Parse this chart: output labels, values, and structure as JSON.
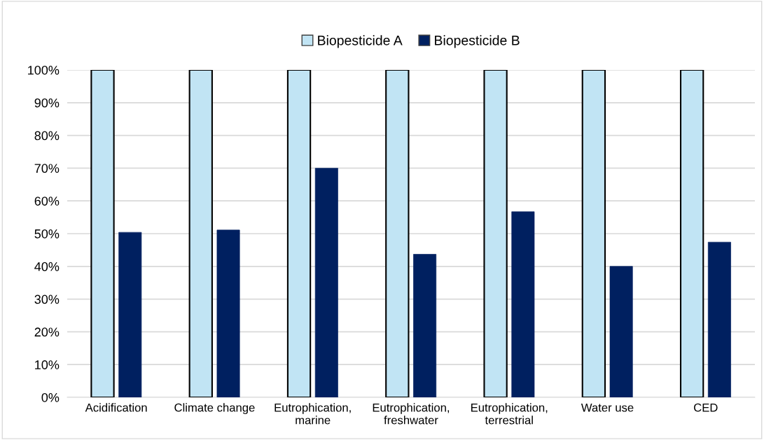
{
  "chart_data": {
    "type": "bar",
    "categories": [
      "Acidification",
      "Climate change",
      "Eutrophication,\nmarine",
      "Eutrophication,\nfreshwater",
      "Eutrophication,\nterrestrial",
      "Water use",
      "CED"
    ],
    "series": [
      {
        "name": "Biopesticide A",
        "color": "#c1e4f4",
        "values": [
          100,
          100,
          100,
          100,
          100,
          100,
          100
        ]
      },
      {
        "name": "Biopesticide B",
        "color": "#002060",
        "values": [
          50.4,
          51.1,
          70,
          43.7,
          56.7,
          40,
          47.4
        ]
      }
    ],
    "ylim": [
      0,
      100
    ],
    "yticks": [
      {
        "value": 0,
        "label": "0%"
      },
      {
        "value": 10,
        "label": "10%"
      },
      {
        "value": 20,
        "label": "20%"
      },
      {
        "value": 30,
        "label": "30%"
      },
      {
        "value": 40,
        "label": "40%"
      },
      {
        "value": 50,
        "label": "50%"
      },
      {
        "value": 60,
        "label": "60%"
      },
      {
        "value": 70,
        "label": "70%"
      },
      {
        "value": 80,
        "label": "80%"
      },
      {
        "value": 90,
        "label": "90%"
      },
      {
        "value": 100,
        "label": "100%"
      }
    ],
    "grid": "y",
    "legend": "top"
  }
}
